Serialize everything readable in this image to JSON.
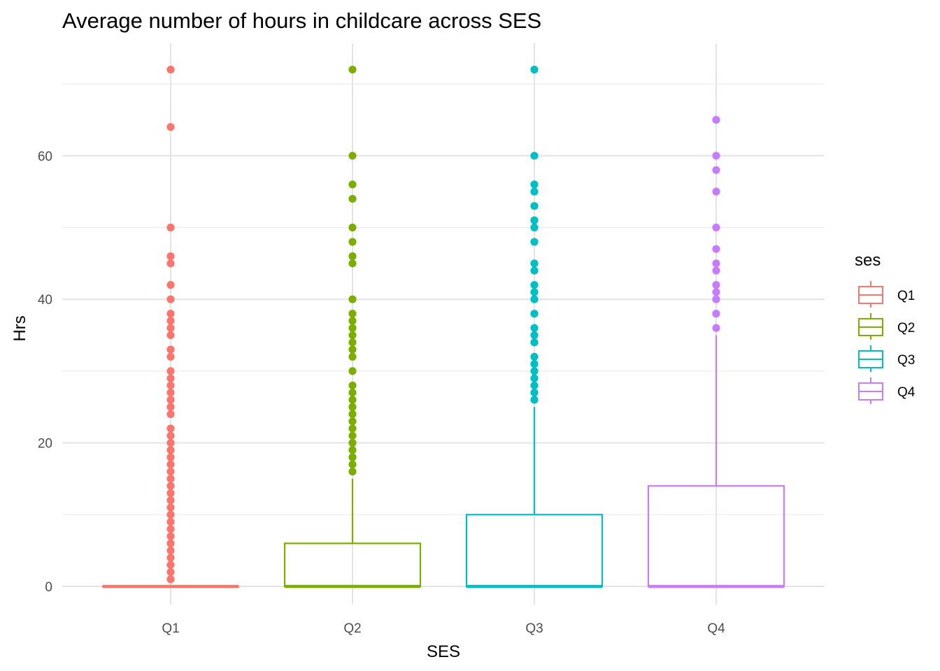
{
  "chart_data": {
    "type": "boxplot",
    "title": "Average number of hours in childcare across SES",
    "xlabel": "SES",
    "ylabel": "Hrs",
    "ylim": [
      -4,
      75
    ],
    "yticks": [
      0,
      20,
      40,
      60
    ],
    "categories": [
      "Q1",
      "Q2",
      "Q3",
      "Q4"
    ],
    "grid": true,
    "legend": {
      "title": "ses",
      "position": "right",
      "entries": [
        "Q1",
        "Q2",
        "Q3",
        "Q4"
      ]
    },
    "series": [
      {
        "name": "Q1",
        "color": "#F8766D",
        "min": 0,
        "q1": 0,
        "median": 0,
        "q3": 0,
        "max": 0,
        "outliers": [
          1,
          2,
          3,
          4,
          5,
          6,
          7,
          8,
          9,
          10,
          11,
          12,
          13,
          14,
          15,
          16,
          17,
          18,
          19,
          20,
          21,
          22,
          24,
          25,
          26,
          27,
          28,
          29,
          30,
          32,
          33,
          35,
          36,
          37,
          38,
          40,
          42,
          45,
          46,
          50,
          64,
          72
        ]
      },
      {
        "name": "Q2",
        "color": "#7CAE00",
        "min": 0,
        "q1": 0,
        "median": 0,
        "q3": 6,
        "max": 15,
        "outliers": [
          16,
          17,
          18,
          19,
          20,
          21,
          22,
          23,
          24,
          25,
          26,
          27,
          28,
          30,
          32,
          33,
          34,
          35,
          36,
          37,
          38,
          40,
          45,
          46,
          48,
          50,
          54,
          56,
          60,
          72
        ]
      },
      {
        "name": "Q3",
        "color": "#00BFC4",
        "min": 0,
        "q1": 0,
        "median": 0,
        "q3": 10,
        "max": 25,
        "outliers": [
          26,
          27,
          28,
          29,
          30,
          31,
          32,
          34,
          35,
          36,
          38,
          40,
          41,
          42,
          44,
          45,
          48,
          50,
          51,
          53,
          55,
          56,
          60,
          72
        ]
      },
      {
        "name": "Q4",
        "color": "#C77CFF",
        "min": 0,
        "q1": 0,
        "median": 0,
        "q3": 14,
        "max": 35,
        "outliers": [
          36,
          38,
          40,
          41,
          42,
          44,
          45,
          47,
          50,
          55,
          58,
          60,
          65
        ]
      }
    ]
  }
}
